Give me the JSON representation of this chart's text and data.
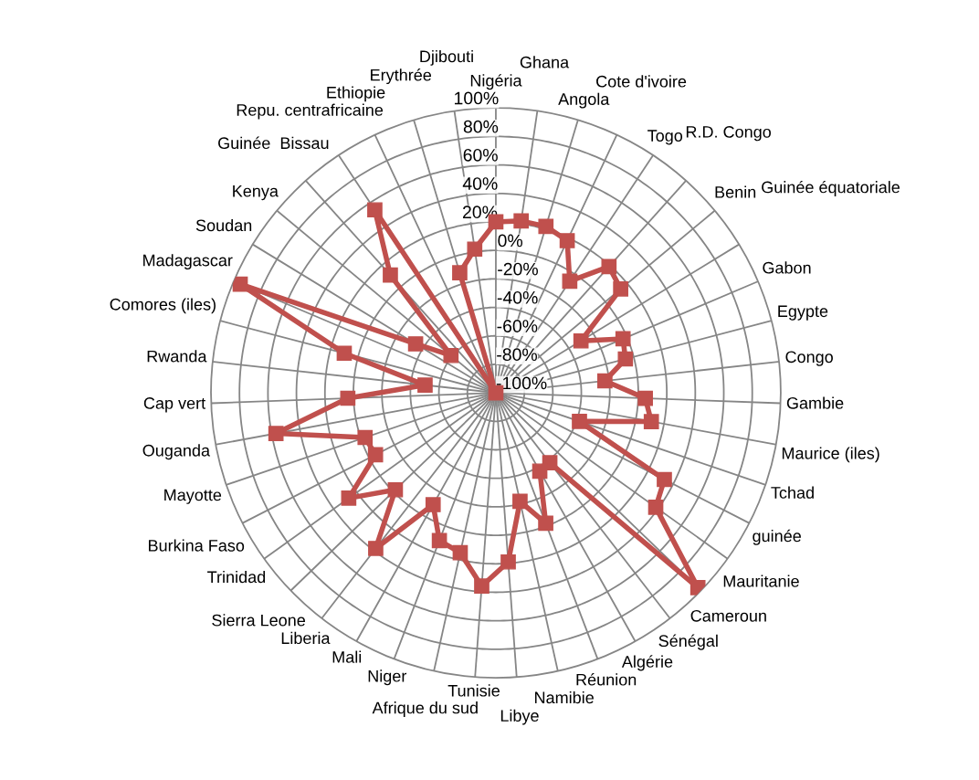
{
  "chart_data": {
    "type": "radar",
    "categories": [
      "Nigéria",
      "Ghana",
      "Angola",
      "Cote d'ivoire",
      "Togo",
      "R.D. Congo",
      "Benin",
      "Guinée équatoriale",
      "Gabon",
      "Egypte",
      "Congo",
      "Gambie",
      "Maurice (iles)",
      "Tchad",
      "guinée",
      "Mauritanie",
      "Cameroun",
      "Sénégal",
      "Algérie",
      "Réunion",
      "Namibie",
      "Libye",
      "Tunisie",
      "Afrique du sud",
      "Niger",
      "Mali",
      "Liberia",
      "Sierra Leone",
      "Trinidad",
      "Burkina Faso",
      "Mayotte",
      "Ouganda",
      "Cap vert",
      "Rwanda",
      "Comores (iles)",
      "Madagascar",
      "Soudan",
      "Kenya",
      "Guinée  Bissau",
      "Repu. centrafricaine",
      "Ethiopie",
      "Erythrée",
      "Djibouti"
    ],
    "series": [
      {
        "color": "#c0504d",
        "values": [
          20,
          22,
          22,
          18,
          -6,
          19,
          14,
          -30,
          -3,
          -6,
          -23,
          5,
          11,
          -38,
          33,
          38,
          97,
          -38,
          -37,
          -2,
          -22,
          19,
          36,
          15,
          11,
          -10,
          38,
          -2,
          27,
          -5,
          -3,
          57,
          4,
          -50,
          10,
          95,
          -34,
          -59,
          11,
          54,
          -100,
          -12,
          2
        ]
      }
    ],
    "ylim": [
      -100,
      100
    ],
    "yticks": [
      {
        "value": -100,
        "label": "-100%"
      },
      {
        "value": -80,
        "label": "-80%"
      },
      {
        "value": -60,
        "label": "-60%"
      },
      {
        "value": -40,
        "label": "-40%"
      },
      {
        "value": -20,
        "label": "-20%"
      },
      {
        "value": 0,
        "label": "0%"
      },
      {
        "value": 20,
        "label": "20%"
      },
      {
        "value": 40,
        "label": "40%"
      },
      {
        "value": 60,
        "label": "60%"
      },
      {
        "value": 80,
        "label": "80%"
      },
      {
        "value": 100,
        "label": "100%"
      }
    ],
    "grid": true,
    "marker": "square",
    "legend": false
  }
}
